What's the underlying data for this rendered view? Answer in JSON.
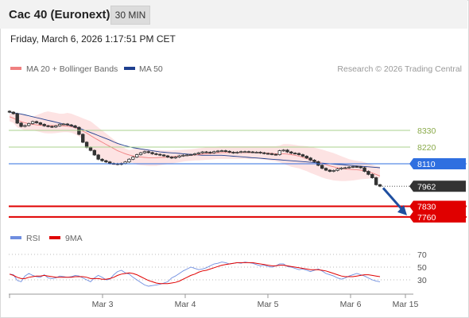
{
  "header": {
    "title": "Cac 40 (Euronext)",
    "timeframe": "30 MIN"
  },
  "datetime": "Friday, March 6, 2026 1:17:51 PM CET",
  "legend": {
    "ma20": "MA 20 + Bollinger Bands",
    "ma50": "MA 50",
    "credit": "Research © 2026 Trading Central"
  },
  "colors": {
    "ma20": "#f08080",
    "band_fill": "#fde3e3",
    "ma50": "#1f3f8f",
    "candle": "#333333",
    "resistance": "#a8d08d",
    "pivot": "#2f6fe0",
    "support": "#e00000",
    "price_tag": "#333333",
    "rsi": "#6f8ee0",
    "rsi_ma": "#e00000",
    "arrow": "#1f4fa0"
  },
  "chart_data": [
    {
      "type": "candlestick",
      "name": "price",
      "ylim": [
        7700,
        8480
      ],
      "levels": [
        {
          "label": "8330",
          "value": 8330,
          "kind": "resistance"
        },
        {
          "label": "8220",
          "value": 8220,
          "kind": "resistance"
        },
        {
          "label": "8110",
          "value": 8110,
          "kind": "pivot"
        },
        {
          "label": "7962",
          "value": 7962,
          "kind": "last"
        },
        {
          "label": "7830",
          "value": 7830,
          "kind": "support"
        },
        {
          "label": "7760",
          "value": 7760,
          "kind": "support"
        }
      ],
      "close": [
        8450,
        8440,
        8378,
        8356,
        8362,
        8375,
        8388,
        8380,
        8370,
        8360,
        8356,
        8352,
        8360,
        8370,
        8372,
        8366,
        8360,
        8350,
        8304,
        8252,
        8218,
        8198,
        8168,
        8140,
        8130,
        8122,
        8112,
        8110,
        8106,
        8112,
        8122,
        8140,
        8154,
        8170,
        8182,
        8190,
        8184,
        8176,
        8172,
        8168,
        8162,
        8154,
        8148,
        8154,
        8162,
        8166,
        8168,
        8170,
        8176,
        8182,
        8188,
        8186,
        8182,
        8190,
        8194,
        8196,
        8192,
        8186,
        8182,
        8186,
        8190,
        8190,
        8188,
        8186,
        8186,
        8182,
        8178,
        8176,
        8172,
        8170,
        8196,
        8200,
        8188,
        8180,
        8178,
        8170,
        8160,
        8148,
        8134,
        8124,
        8100,
        8080,
        8068,
        8060,
        8066,
        8076,
        8082,
        8084,
        8088,
        8092,
        8090,
        8084,
        8060,
        8040,
        8018,
        7972,
        7962
      ],
      "ma20": [
        8420,
        8410,
        8398,
        8388,
        8380,
        8374,
        8370,
        8366,
        8364,
        8362,
        8362,
        8362,
        8362,
        8362,
        8360,
        8358,
        8354,
        8348,
        8338,
        8325,
        8312,
        8296,
        8280,
        8266,
        8252,
        8238,
        8224,
        8210,
        8196,
        8186,
        8176,
        8168,
        8162,
        8156,
        8154,
        8152,
        8150,
        8150,
        8150,
        8152,
        8152,
        8154,
        8156,
        8158,
        8160,
        8162,
        8164,
        8166,
        8168,
        8170,
        8174,
        8176,
        8178,
        8180,
        8182,
        8184,
        8184,
        8184,
        8184,
        8184,
        8184,
        8184,
        8184,
        8184,
        8184,
        8184,
        8182,
        8180,
        8178,
        8176,
        8176,
        8176,
        8174,
        8170,
        8166,
        8160,
        8152,
        8144,
        8136,
        8128,
        8120,
        8112,
        8104,
        8096,
        8090,
        8084,
        8080,
        8076,
        8074,
        8072,
        8070,
        8068,
        8064,
        8058,
        8050,
        8040,
        8030
      ],
      "upper": [
        8440,
        8440,
        8440,
        8440,
        8430,
        8420,
        8420,
        8430,
        8440,
        8450,
        8455,
        8450,
        8445,
        8440,
        8440,
        8445,
        8440,
        8430,
        8420,
        8410,
        8400,
        8390,
        8370,
        8350,
        8330,
        8310,
        8290,
        8270,
        8250,
        8230,
        8210,
        8200,
        8205,
        8210,
        8210,
        8208,
        8205,
        8200,
        8200,
        8200,
        8198,
        8198,
        8198,
        8200,
        8200,
        8202,
        8204,
        8206,
        8208,
        8212,
        8215,
        8218,
        8220,
        8222,
        8224,
        8226,
        8226,
        8226,
        8226,
        8226,
        8226,
        8226,
        8226,
        8226,
        8226,
        8226,
        8226,
        8226,
        8226,
        8226,
        8230,
        8240,
        8240,
        8238,
        8234,
        8230,
        8228,
        8226,
        8222,
        8216,
        8210,
        8204,
        8196,
        8188,
        8180,
        8170,
        8160,
        8150,
        8140,
        8134,
        8130,
        8126,
        8120,
        8112,
        8104,
        8096,
        8090
      ],
      "lower": [
        8390,
        8380,
        8350,
        8340,
        8330,
        8330,
        8330,
        8325,
        8318,
        8312,
        8310,
        8310,
        8312,
        8316,
        8318,
        8318,
        8315,
        8305,
        8290,
        8270,
        8240,
        8210,
        8185,
        8160,
        8140,
        8120,
        8105,
        8100,
        8100,
        8105,
        8115,
        8120,
        8115,
        8105,
        8100,
        8098,
        8096,
        8096,
        8096,
        8100,
        8104,
        8108,
        8112,
        8116,
        8120,
        8124,
        8128,
        8130,
        8132,
        8132,
        8134,
        8136,
        8138,
        8140,
        8142,
        8142,
        8142,
        8142,
        8142,
        8142,
        8142,
        8142,
        8142,
        8142,
        8142,
        8140,
        8138,
        8134,
        8130,
        8126,
        8120,
        8110,
        8100,
        8090,
        8085,
        8080,
        8070,
        8062,
        8050,
        8040,
        8030,
        8020,
        8012,
        8006,
        8000,
        7998,
        7996,
        7996,
        7998,
        8000,
        8004,
        8008,
        8010,
        8012,
        8014,
        8016,
        8016
      ],
      "ma50": [
        8450,
        8446,
        8442,
        8438,
        8432,
        8426,
        8420,
        8414,
        8408,
        8402,
        8396,
        8390,
        8384,
        8378,
        8372,
        8366,
        8360,
        8352,
        8344,
        8336,
        8326,
        8316,
        8306,
        8296,
        8286,
        8276,
        8266,
        8254,
        8244,
        8236,
        8228,
        8222,
        8216,
        8212,
        8208,
        8204,
        8200,
        8196,
        8192,
        8188,
        8186,
        8184,
        8182,
        8180,
        8178,
        8176,
        8174,
        8172,
        8170,
        8168,
        8166,
        8166,
        8166,
        8166,
        8166,
        8166,
        8164,
        8162,
        8160,
        8158,
        8156,
        8154,
        8152,
        8150,
        8148,
        8146,
        8144,
        8142,
        8140,
        8138,
        8136,
        8134,
        8132,
        8130,
        8128,
        8126,
        8124,
        8122,
        8120,
        8118,
        8116,
        8114,
        8112,
        8110,
        8108,
        8106,
        8104,
        8102,
        8100,
        8098,
        8096,
        8094,
        8092,
        8090,
        8088,
        8086,
        8084
      ]
    },
    {
      "type": "line",
      "name": "RSI",
      "ylim": [
        15,
        85
      ],
      "y_ticks": [
        70,
        50,
        30
      ],
      "series": [
        {
          "name": "RSI",
          "values": [
            39,
            38,
            29,
            27,
            36,
            40,
            37,
            35,
            34,
            38,
            33,
            32,
            33,
            36,
            35,
            34,
            35,
            37,
            36,
            33,
            30,
            27,
            33,
            37,
            34,
            30,
            31,
            38,
            43,
            45,
            41,
            39,
            34,
            30,
            26,
            22,
            20,
            21,
            22,
            23,
            25,
            27,
            33,
            36,
            40,
            44,
            47,
            50,
            48,
            46,
            47,
            49,
            52,
            55,
            56,
            58,
            57,
            55,
            56,
            57,
            56,
            58,
            57,
            56,
            54,
            52,
            53,
            51,
            50,
            52,
            55,
            55,
            51,
            50,
            48,
            46,
            47,
            45,
            43,
            45,
            47,
            44,
            40,
            38,
            36,
            33,
            31,
            33,
            36,
            38,
            40,
            38,
            36,
            33,
            30,
            28,
            27
          ]
        },
        {
          "name": "9MA",
          "values": [
            39,
            37,
            34,
            32,
            32,
            34,
            35,
            36,
            36,
            37,
            36,
            35,
            34,
            34,
            34,
            34,
            34,
            35,
            35,
            35,
            34,
            32,
            32,
            32,
            31,
            31,
            32,
            34,
            37,
            39,
            40,
            41,
            40,
            38,
            35,
            32,
            29,
            27,
            25,
            24,
            24,
            24,
            25,
            26,
            28,
            31,
            34,
            37,
            39,
            42,
            44,
            45,
            47,
            49,
            51,
            53,
            54,
            55,
            56,
            57,
            57,
            57,
            57,
            57,
            56,
            55,
            54,
            53,
            52,
            52,
            53,
            53,
            52,
            51,
            50,
            49,
            48,
            47,
            46,
            46,
            46,
            45,
            44,
            42,
            40,
            38,
            36,
            35,
            35,
            35,
            36,
            37,
            38,
            38,
            37,
            36,
            35
          ]
        }
      ]
    }
  ],
  "rsi_legend": {
    "rsi": "RSI",
    "ma": "9MA"
  },
  "x_axis": {
    "ticks": [
      "Mar 3",
      "Mar 4",
      "Mar 5",
      "Mar 6",
      "Mar 15"
    ]
  }
}
